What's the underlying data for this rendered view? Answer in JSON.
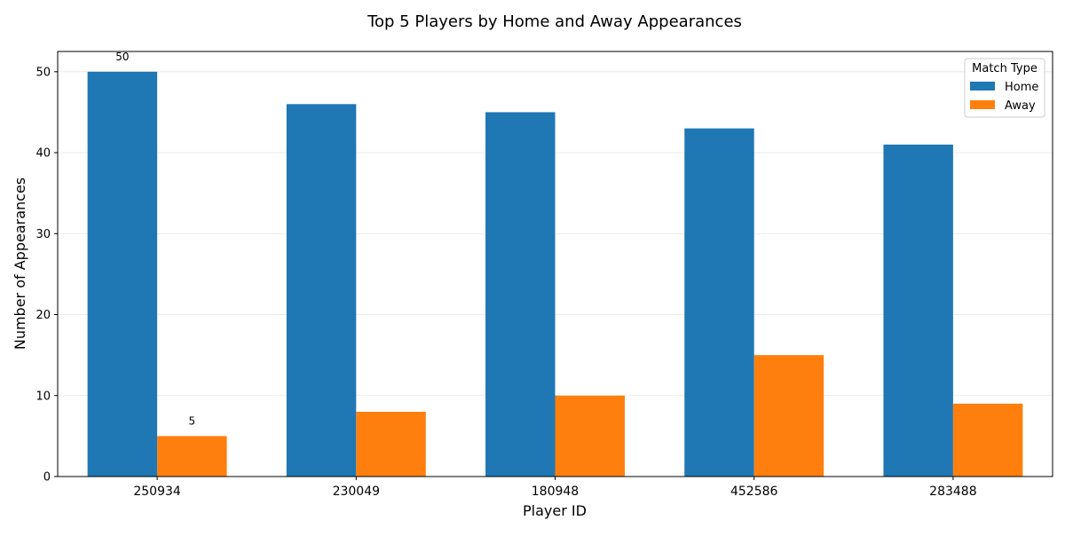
{
  "chart_data": {
    "type": "bar",
    "title": "Top 5 Players by Home and Away Appearances",
    "xlabel": "Player ID",
    "ylabel": "Number of Appearances",
    "categories": [
      "250934",
      "230049",
      "180948",
      "452586",
      "283488"
    ],
    "series": [
      {
        "name": "Home",
        "color": "#1f77b4",
        "values": [
          50,
          46,
          45,
          43,
          41
        ]
      },
      {
        "name": "Away",
        "color": "#ff7f0e",
        "values": [
          5,
          8,
          10,
          15,
          9
        ]
      }
    ],
    "ylim": [
      0,
      52.5
    ],
    "yticks": [
      0,
      10,
      20,
      30,
      40,
      50
    ],
    "grid": true,
    "legend": {
      "title": "Match Type",
      "position": "top-right"
    },
    "data_labels": [
      {
        "series": 0,
        "category": 0,
        "text": "50"
      },
      {
        "series": 1,
        "category": 0,
        "text": "5"
      }
    ]
  }
}
